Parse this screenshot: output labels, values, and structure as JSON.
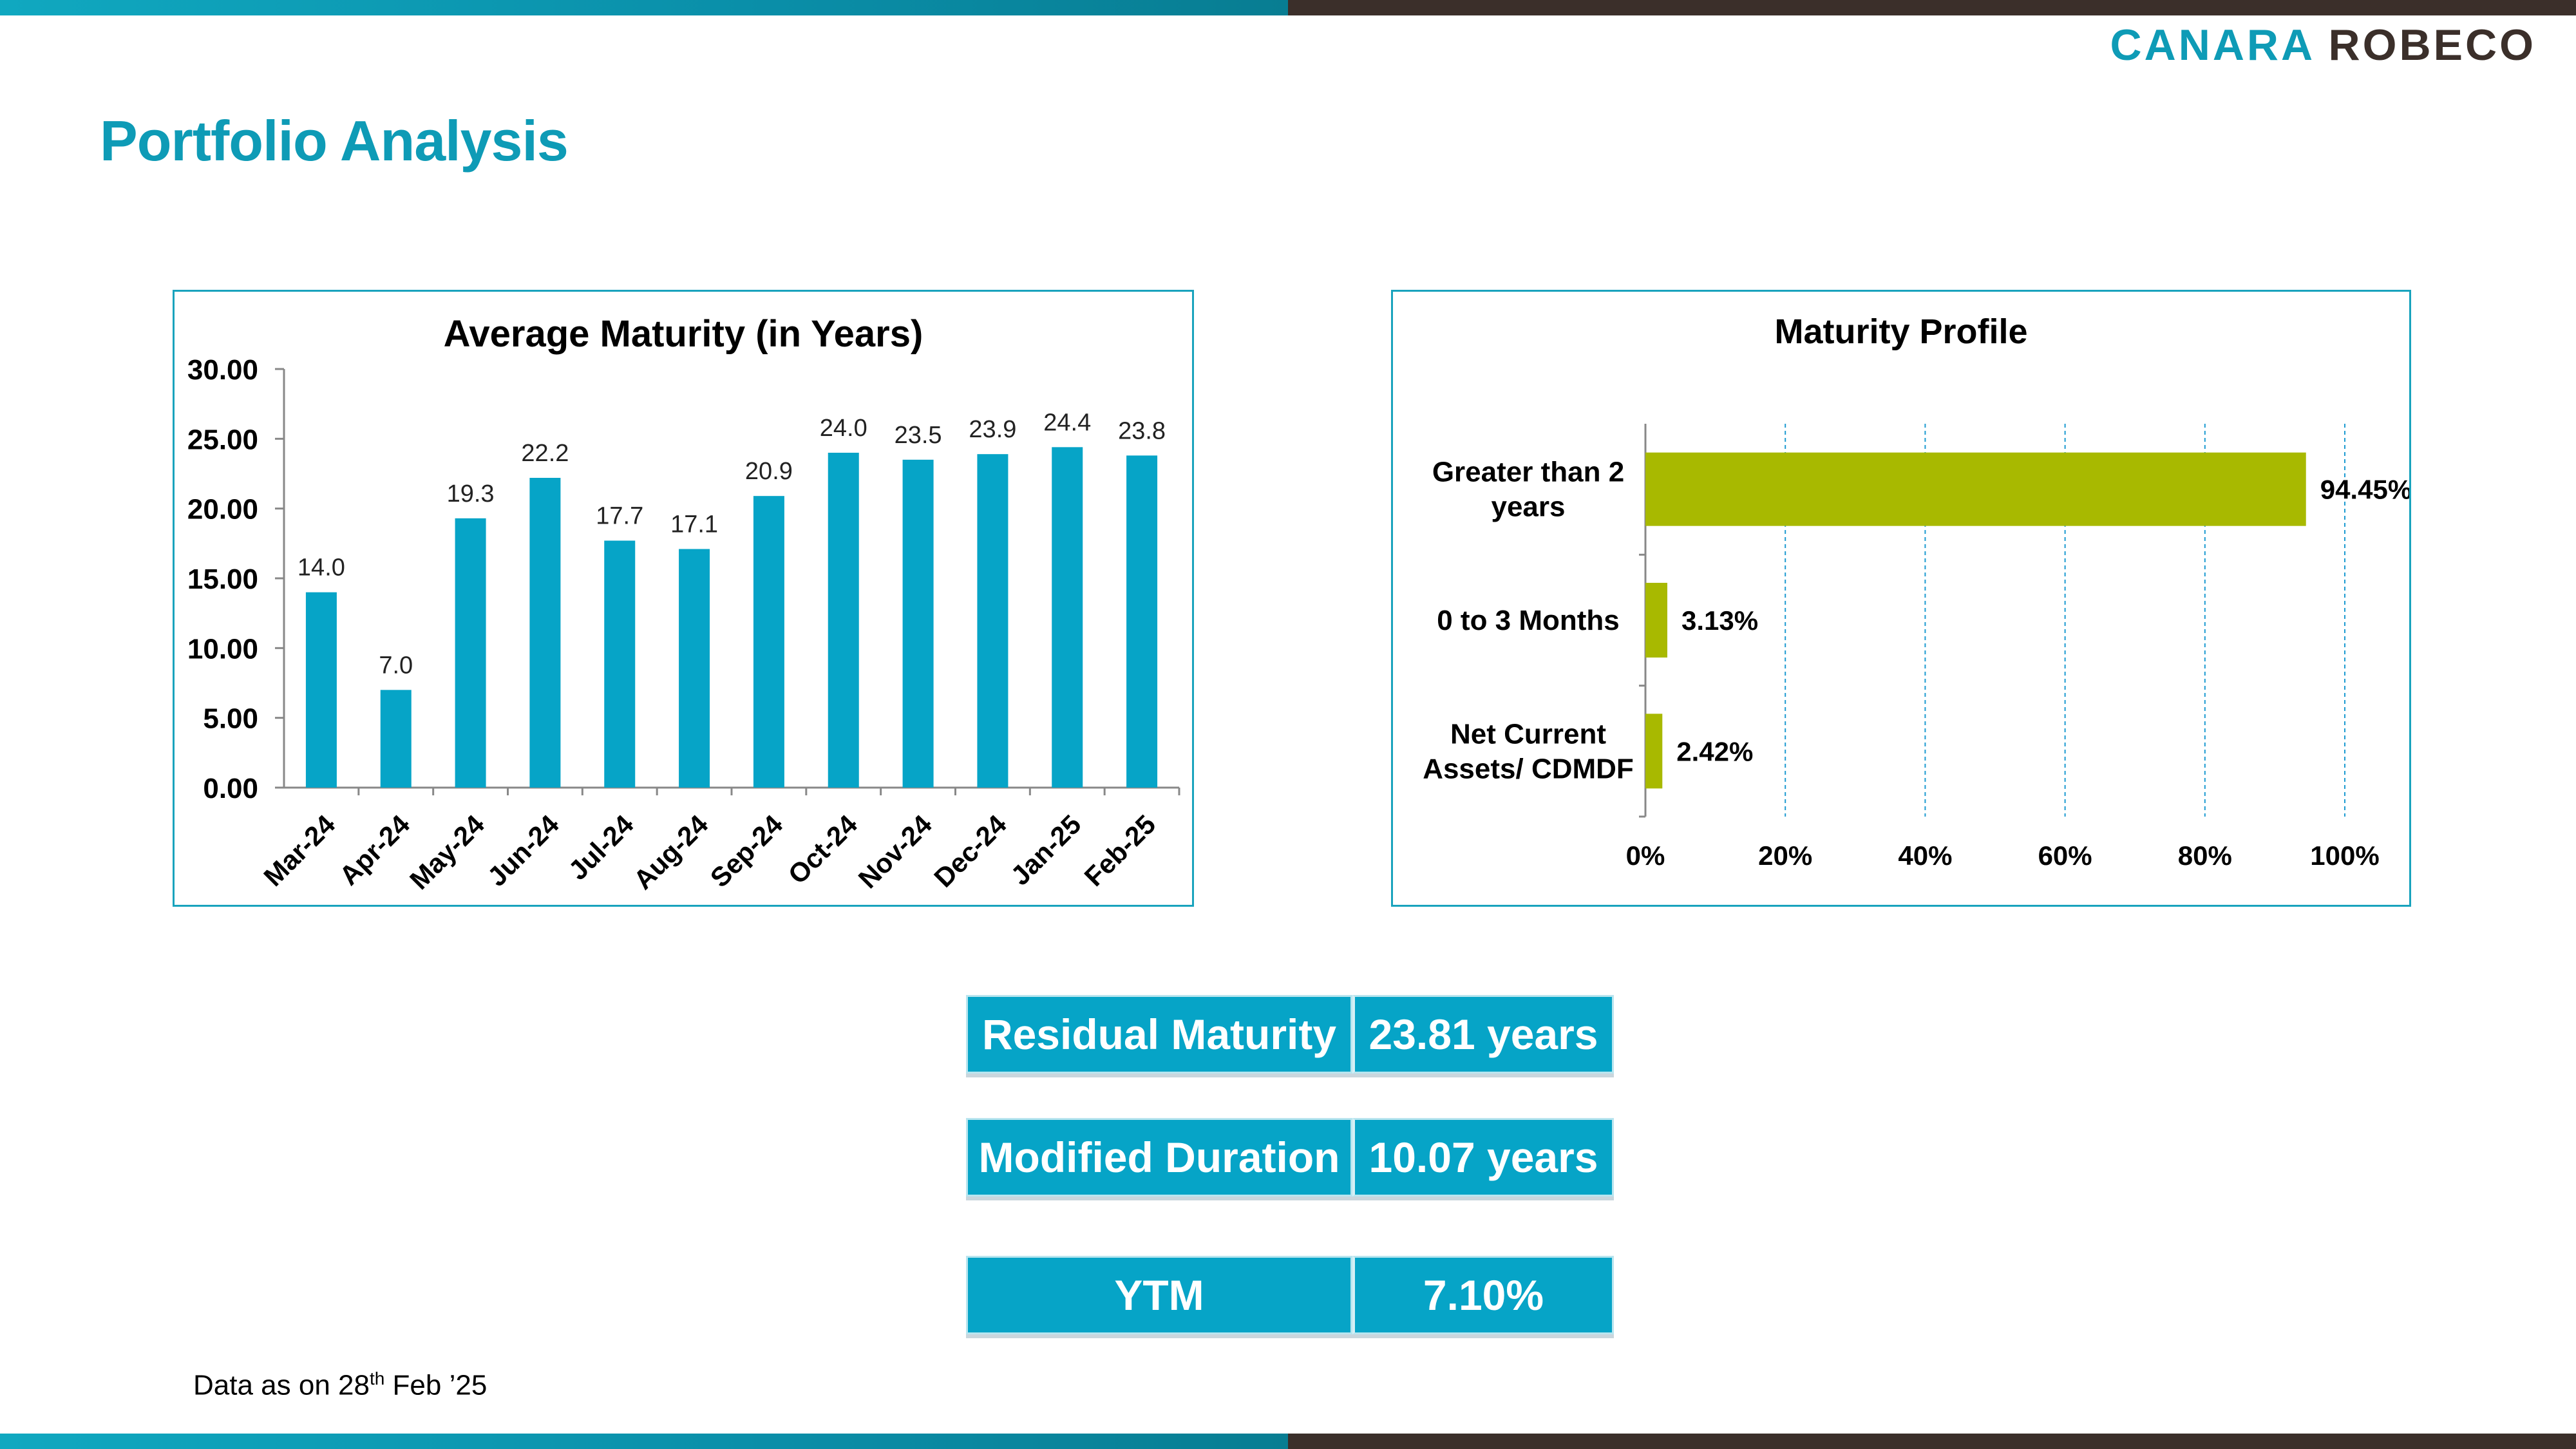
{
  "brand": {
    "logo_canara": "CANARA",
    "logo_robeco": "ROBECO"
  },
  "page": {
    "title": "Portfolio Analysis"
  },
  "colors": {
    "teal": "#0e9bb6",
    "bar_teal": "#06a4c7",
    "bar_green": "#a8b900",
    "brown": "#3b2f2a"
  },
  "chart_data": [
    {
      "type": "bar",
      "title": "Average Maturity (in Years)",
      "categories": [
        "Mar-24",
        "Apr-24",
        "May-24",
        "Jun-24",
        "Jul-24",
        "Aug-24",
        "Sep-24",
        "Oct-24",
        "Nov-24",
        "Dec-24",
        "Jan-25",
        "Feb-25"
      ],
      "values": [
        14.0,
        7.0,
        19.3,
        22.2,
        17.7,
        17.1,
        20.9,
        24.0,
        23.5,
        23.9,
        24.4,
        23.8
      ],
      "value_labels": [
        "14.0",
        "7.0",
        "19.3",
        "22.2",
        "17.7",
        "17.1",
        "20.9",
        "24.0",
        "23.5",
        "23.9",
        "24.4",
        "23.8"
      ],
      "ylim": [
        0,
        30
      ],
      "yticks": [
        "0.00",
        "5.00",
        "10.00",
        "15.00",
        "20.00",
        "25.00",
        "30.00"
      ],
      "grid": false,
      "color": "#06a4c7"
    },
    {
      "type": "bar",
      "orientation": "horizontal",
      "title": "Maturity Profile",
      "categories": [
        [
          "Greater than 2",
          "years"
        ],
        [
          "0 to 3 Months"
        ],
        [
          "Net Current",
          "Assets/ CDMDF"
        ]
      ],
      "values": [
        94.45,
        3.13,
        2.42
      ],
      "value_labels": [
        "94.45%",
        "3.13%",
        "2.42%"
      ],
      "xlim": [
        0,
        100
      ],
      "xticks": [
        "0%",
        "20%",
        "40%",
        "60%",
        "80%",
        "100%"
      ],
      "grid": true,
      "color": "#a8b900"
    }
  ],
  "metrics": {
    "residual_label": "Residual Maturity",
    "residual_value": "23.81 years",
    "modified_label": "Modified Duration",
    "modified_value": "10.07 years",
    "ytm_label": "YTM",
    "ytm_value": "7.10%"
  },
  "footnote": {
    "prefix": "Data as on 28",
    "sup": "th",
    "suffix": " Feb  ’25"
  }
}
